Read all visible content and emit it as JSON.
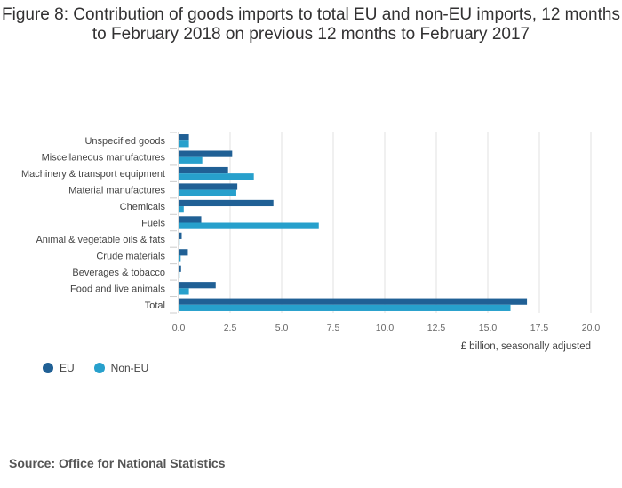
{
  "chart_data": {
    "type": "bar",
    "orientation": "horizontal",
    "title": "Figure 8: Contribution of goods imports to total EU and non-EU imports, 12 months to February 2018 on previous 12 months to February 2017",
    "categories": [
      "Unspecified goods",
      "Miscellaneous manufactures",
      "Machinery & transport equipment",
      "Material manufactures",
      "Chemicals",
      "Fuels",
      "Animal & vegetable oils & fats",
      "Crude materials",
      "Beverages & tobacco",
      "Food and live animals",
      "Total"
    ],
    "series": [
      {
        "name": "EU",
        "color": "#206095",
        "values": [
          0.5,
          2.6,
          2.4,
          2.85,
          4.6,
          1.1,
          0.15,
          0.45,
          0.12,
          1.8,
          16.9
        ]
      },
      {
        "name": "Non-EU",
        "color": "#27a0cc",
        "values": [
          0.5,
          1.15,
          3.65,
          2.8,
          0.25,
          6.8,
          0.05,
          0.1,
          0.05,
          0.5,
          16.1
        ]
      }
    ],
    "xlim": [
      0,
      20
    ],
    "xticks": [
      "0.0",
      "2.5",
      "5.0",
      "7.5",
      "10.0",
      "12.5",
      "15.0",
      "17.5",
      "20.0"
    ],
    "xlabel": "£ billion, seasonally adjusted",
    "ylabel": "",
    "grid": true,
    "legend_position": "bottom-left"
  },
  "source": "Source: Office for National Statistics"
}
